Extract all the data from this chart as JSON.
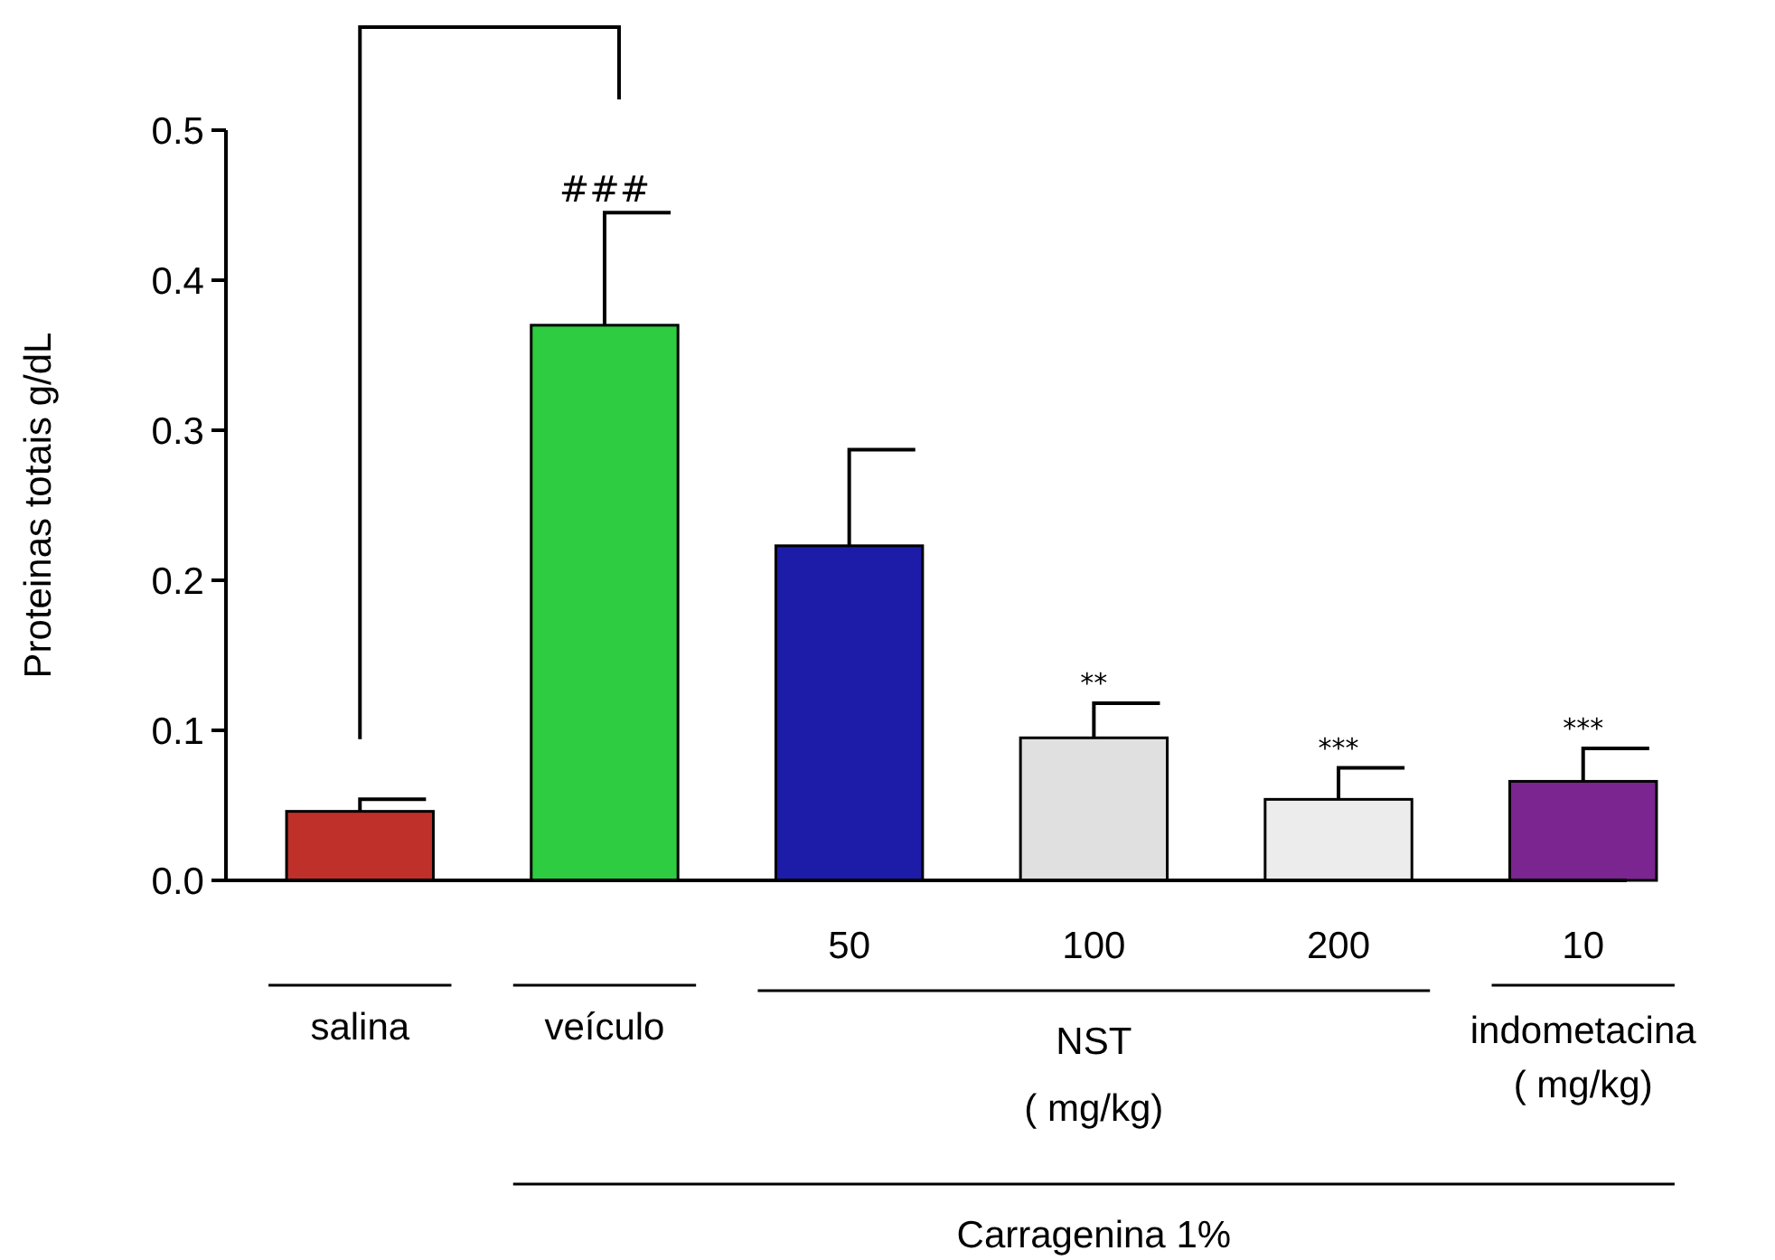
{
  "chart_data": {
    "type": "bar",
    "ylabel": "Proteinas totais g/dL",
    "categories": [
      "salina",
      "veículo",
      "50",
      "100",
      "200",
      "10"
    ],
    "values": [
      0.046,
      0.37,
      0.223,
      0.095,
      0.054,
      0.066
    ],
    "colors": [
      "#c0302a",
      "#2ecc40",
      "#1c1ca8",
      "#e0e0e0",
      "#ececec",
      "#7a2590"
    ],
    "errors": [
      [
        0.046,
        0.054
      ],
      [
        0.37,
        0.445
      ],
      [
        0.223,
        0.287
      ],
      [
        0.095,
        0.118
      ],
      [
        0.054,
        0.075
      ],
      [
        0.066,
        0.088
      ]
    ],
    "ylim": [
      0,
      0.5
    ],
    "yticks": [
      {
        "value": 0,
        "label": "0.0"
      },
      0.1,
      0.2,
      0.3,
      0.4,
      0.5
    ],
    "annotations": [
      {
        "text": "###",
        "x": "veículo",
        "y": 0.445
      },
      {
        "text": "**",
        "x": "100",
        "y": 0.118
      },
      {
        "text": "***",
        "x": "200",
        "y": 0.075
      },
      {
        "text": "***",
        "x": "10",
        "y": 0.088
      },
      "NST",
      "( mg/kg)",
      "indometacina",
      "( mg/kg)",
      "Carragenina 1%"
    ]
  }
}
